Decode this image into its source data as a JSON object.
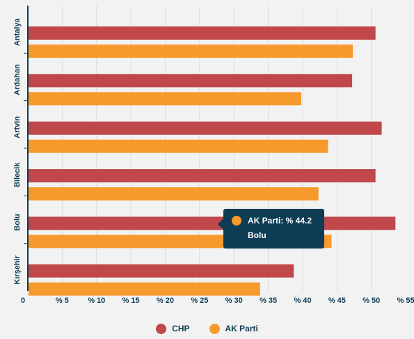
{
  "chart_data": {
    "type": "bar",
    "orientation": "horizontal",
    "categories": [
      "Antalya",
      "Ardahan",
      "Artvin",
      "Bilecik",
      "Bolu",
      "Kırşehir"
    ],
    "series": [
      {
        "name": "CHP",
        "color": "#c0474a",
        "values": [
          50.6,
          47.2,
          51.5,
          50.6,
          53.5,
          38.7
        ]
      },
      {
        "name": "AK Parti",
        "color": "#f79a2e",
        "values": [
          47.3,
          39.8,
          43.7,
          42.3,
          44.2,
          33.8
        ]
      }
    ],
    "x_ticks": [
      "0",
      "% 5",
      "% 10",
      "% 15",
      "% 20",
      "% 25",
      "% 30",
      "% 35",
      "% 40",
      "% 45",
      "% 50",
      "% 55"
    ],
    "xlim": [
      0,
      55
    ],
    "grid": true,
    "legend": "bottom-center"
  },
  "tooltip": {
    "title": "AK Parti: % 44.2",
    "subtitle": "Bolu",
    "color": "#f79a2e"
  },
  "legend": [
    {
      "label": "CHP",
      "color": "#c0474a"
    },
    {
      "label": "AK Parti",
      "color": "#f79a2e"
    }
  ]
}
